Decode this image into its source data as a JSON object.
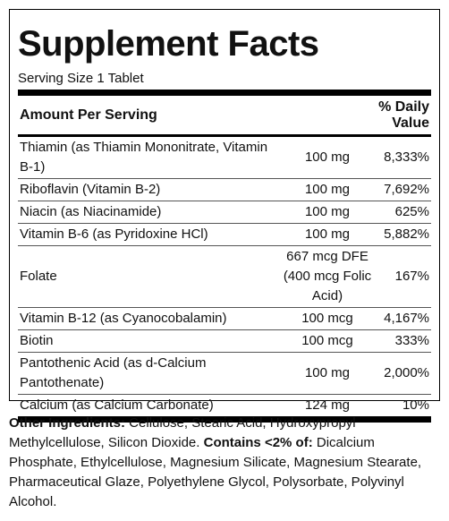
{
  "label": {
    "title": "Supplement Facts",
    "serving_size": "Serving Size 1 Tablet",
    "header": {
      "amount": "Amount Per Serving",
      "daily_value": "% Daily Value"
    },
    "rows": [
      [
        "Thiamin (as Thiamin Mononitrate, Vitamin B-1)",
        "100 mg",
        "8,333%"
      ],
      [
        "Riboflavin (Vitamin B-2)",
        "100 mg",
        "7,692%"
      ],
      [
        "Niacin (as Niacinamide)",
        "100 mg",
        "625%"
      ],
      [
        "Vitamin B-6 (as Pyridoxine HCl)",
        "100 mg",
        "5,882%"
      ],
      [
        "Folate",
        "667 mcg DFE (400 mcg Folic Acid)",
        "167%"
      ],
      [
        "Vitamin B-12 (as Cyanocobalamin)",
        "100 mcg",
        "4,167%"
      ],
      [
        "Biotin",
        "100 mcg",
        "333%"
      ],
      [
        "Pantothenic Acid (as d-Calcium Pantothenate)",
        "100 mg",
        "2,000%"
      ],
      [
        "Calcium (as Calcium Carbonate)",
        "124 mg",
        "10%"
      ]
    ]
  },
  "ingredients": {
    "other_label": "Other Ingredients:",
    "other_text": " Cellulose, Stearic Acid, Hydroxypropyl Methylcellulose, Silicon Dioxide. ",
    "contains_label": "Contains <2% of:",
    "contains_text": " Dicalcium Phosphate, Ethylcellulose, Magnesium Silicate, Magnesium Stearate, Pharmaceutical Glaze, Polyethylene Glycol, Polysorbate, Polyvinyl Alcohol."
  }
}
